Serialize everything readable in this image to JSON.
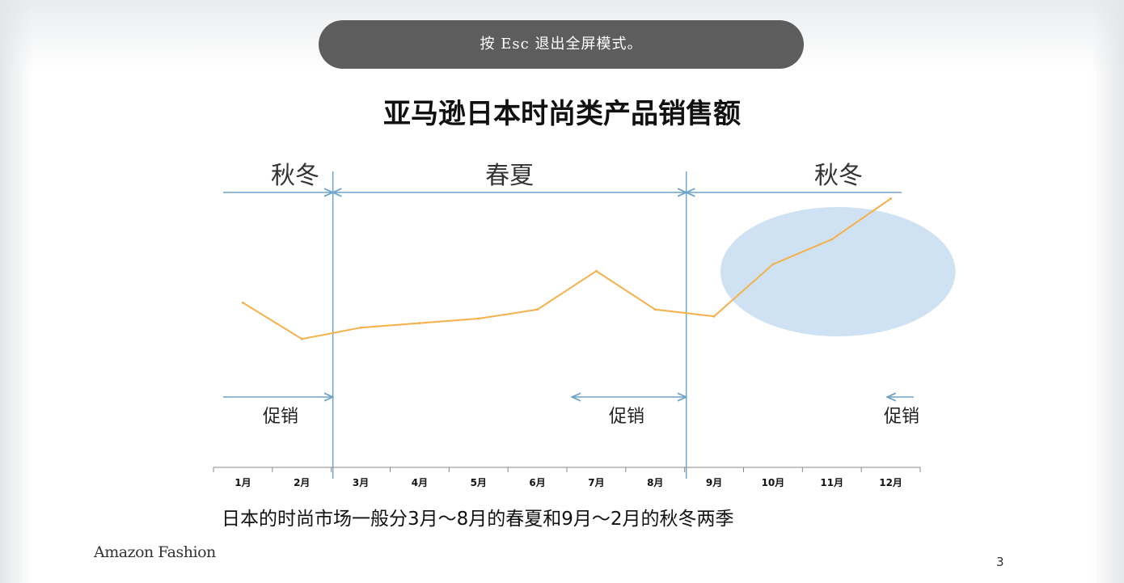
{
  "overlay": {
    "esc_message": "按 Esc 退出全屏模式。"
  },
  "slide": {
    "caption": "日本的时尚市场一般分3月～8月的春夏和9月～2月的秋冬两季",
    "brand": "Amazon Fashion",
    "page_number": "3"
  },
  "seasons": [
    {
      "label": "秋冬",
      "from_month": 1,
      "to_month": 2
    },
    {
      "label": "春夏",
      "from_month": 3,
      "to_month": 8
    },
    {
      "label": "秋冬",
      "from_month": 9,
      "to_month": 12
    }
  ],
  "promotions": [
    {
      "label": "促销",
      "from_month": 1,
      "to_month": 2
    },
    {
      "label": "促销",
      "from_month": 7,
      "to_month": 8
    },
    {
      "label": "促销",
      "from_month": 12,
      "to_month": 12
    }
  ],
  "colors": {
    "line": "#f5b04a",
    "divider": "#6fa3c8",
    "highlight": "#cfe2f3",
    "axis": "#888888"
  },
  "chart_data": {
    "type": "line",
    "title": "亚马逊日本时尚类产品销售额",
    "xlabel": "",
    "ylabel": "",
    "categories": [
      "1月",
      "2月",
      "3月",
      "4月",
      "5月",
      "6月",
      "7月",
      "8月",
      "9月",
      "10月",
      "11月",
      "12月"
    ],
    "values": [
      52,
      36,
      41,
      43,
      45,
      49,
      66,
      49,
      46,
      69,
      80,
      98
    ],
    "ylim": [
      0,
      100
    ],
    "grid": false,
    "highlight_months": [
      10,
      12
    ]
  }
}
